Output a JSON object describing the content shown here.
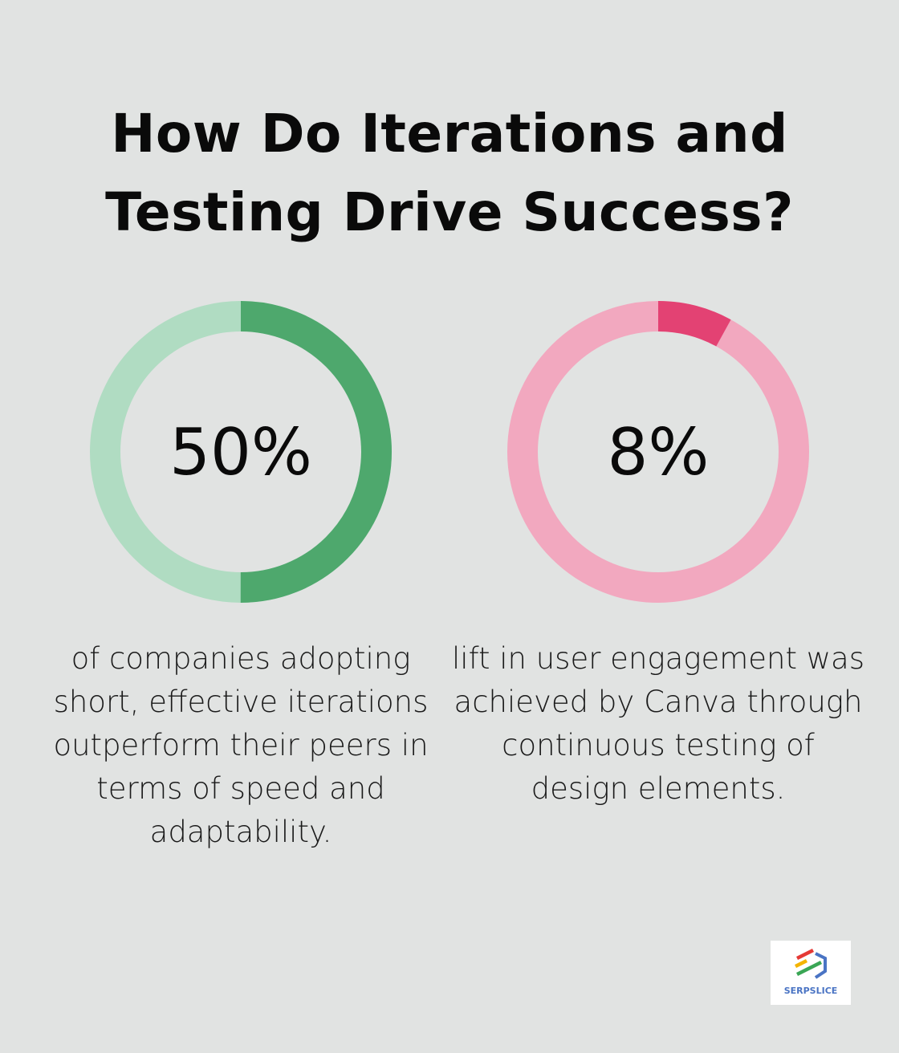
{
  "title": "How Do Iterations and Testing Drive Success?",
  "chart_data": [
    {
      "type": "pie",
      "subtype": "donut",
      "value": 50,
      "label": "50%",
      "description": "of companies adopting short, effective iterations outperform their peers in terms of speed and adaptability.",
      "colors": {
        "fill": "#4ea86d",
        "track": "#b0dcc2"
      }
    },
    {
      "type": "pie",
      "subtype": "donut",
      "value": 8,
      "label": "8%",
      "description": "lift in user engagement was achieved by Canva through continuous testing of design elements.",
      "colors": {
        "fill": "#e34273",
        "track": "#f2a8bf"
      }
    }
  ],
  "logo": {
    "text": "SERPSLICE"
  }
}
